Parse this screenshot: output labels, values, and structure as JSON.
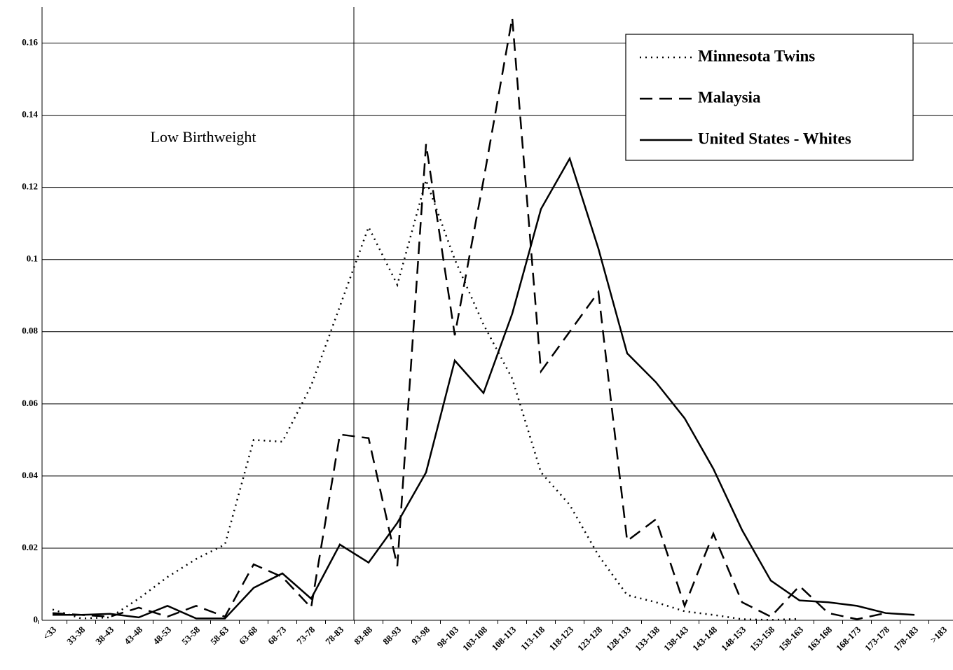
{
  "chart_data": {
    "type": "line",
    "annotations": [
      "Low Birthweight"
    ],
    "categories": [
      "<33",
      "33-38",
      "38-43",
      "43-48",
      "48-53",
      "53-58",
      "58-63",
      "63-68",
      "68-73",
      "73-78",
      "78-83",
      "83-88",
      "88-93",
      "93-98",
      "98-103",
      "103-108",
      "108-113",
      "113-118",
      "118-123",
      "123-128",
      "128-133",
      "133-138",
      "138-143",
      "143-148",
      "148-153",
      "153-158",
      "158-163",
      "163-168",
      "168-173",
      "173-178",
      "178-183",
      ">183"
    ],
    "series": [
      {
        "name": "Minnesota Twins",
        "color": "#000000",
        "style": "dotted",
        "values": [
          0.003,
          0.0005,
          0.0008,
          0.006,
          0.012,
          0.017,
          0.021,
          0.05,
          0.0495,
          0.065,
          0.087,
          0.109,
          0.093,
          0.122,
          0.1,
          0.082,
          0.067,
          0.041,
          0.032,
          0.018,
          0.007,
          0.005,
          0.0025,
          0.0015,
          0.0003,
          0.0001,
          0.0004,
          null,
          null,
          null,
          null,
          null
        ]
      },
      {
        "name": "Malaysia",
        "color": "#000000",
        "style": "dashed",
        "values": [
          0.002,
          0.0015,
          0.001,
          0.0035,
          0.001,
          0.004,
          0.001,
          0.0155,
          0.012,
          0.0035,
          0.0515,
          0.0505,
          0.015,
          0.132,
          0.079,
          0.122,
          0.167,
          0.069,
          0.08,
          0.091,
          0.022,
          0.028,
          0.004,
          0.024,
          0.005,
          0.001,
          0.0095,
          0.002,
          0.0003,
          0.002,
          null,
          null
        ]
      },
      {
        "name": "United States - Whites",
        "color": "#000000",
        "style": "solid",
        "values": [
          0.0015,
          0.0015,
          0.0018,
          0.0008,
          0.004,
          0.0005,
          0.0005,
          0.009,
          0.013,
          0.006,
          0.021,
          0.016,
          0.027,
          0.041,
          0.072,
          0.063,
          0.085,
          0.114,
          0.128,
          0.103,
          0.074,
          0.066,
          0.056,
          0.042,
          0.025,
          0.011,
          0.0055,
          0.005,
          0.004,
          0.002,
          0.0015,
          null
        ]
      }
    ],
    "ylim": [
      0,
      0.17
    ],
    "yticks": [
      0,
      0.02,
      0.04,
      0.06,
      0.08,
      0.1,
      0.12,
      0.14,
      0.16
    ],
    "grid": true,
    "legend": "top right"
  }
}
